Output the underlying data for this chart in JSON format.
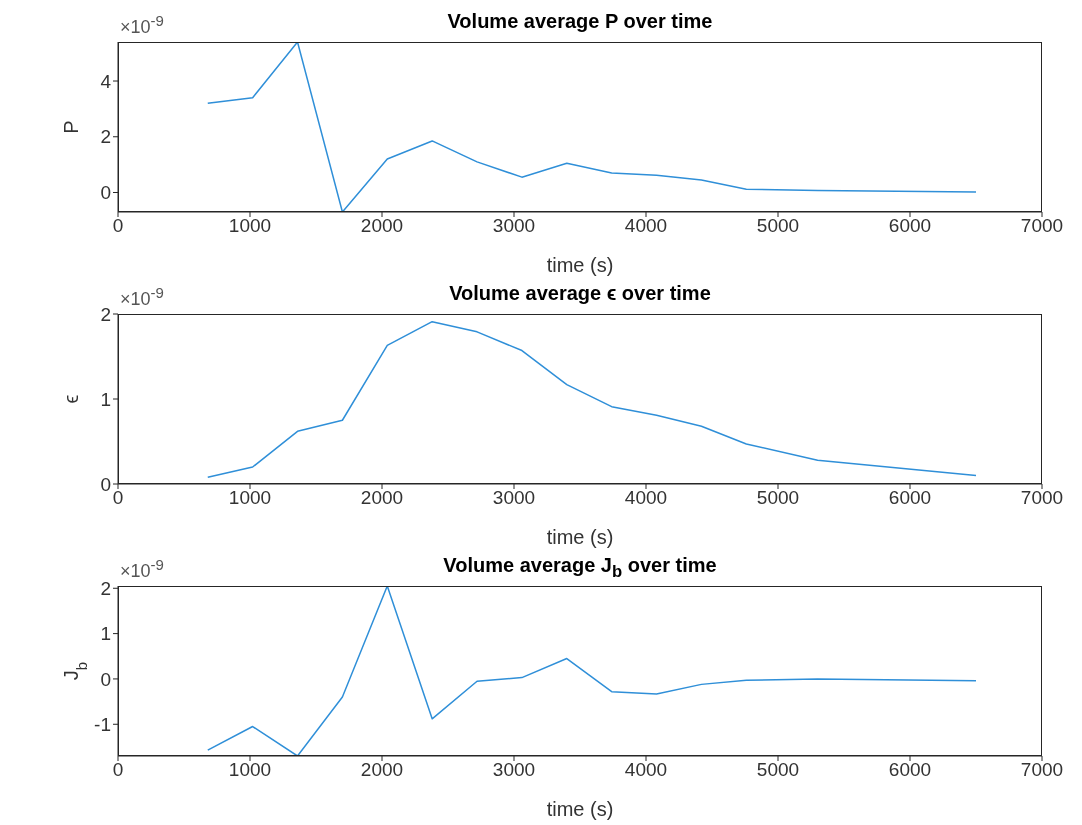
{
  "chart_data": [
    {
      "type": "line",
      "title": "Volume average P over time",
      "xlabel": "time (s)",
      "ylabel": "P",
      "annotations": [
        "×10$^{-9}$"
      ],
      "x": [
        680,
        1020,
        1360,
        1700,
        2040,
        2380,
        2720,
        3060,
        3400,
        3740,
        4080,
        4420,
        4760,
        5300,
        6500
      ],
      "series": [
        {
          "color": "#2f8fd8",
          "values": [
            3.2,
            3.4,
            5.4,
            -0.7,
            1.2,
            1.85,
            1.1,
            0.55,
            1.05,
            0.7,
            0.62,
            0.45,
            0.12,
            0.07,
            0.02
          ]
        }
      ],
      "xlim": [
        0,
        7000
      ],
      "xticks": [
        0,
        1000,
        2000,
        3000,
        4000,
        5000,
        6000,
        7000
      ],
      "ylim": [
        -0.7,
        5.4
      ],
      "yticks": [
        0,
        2,
        4
      ],
      "grid": false,
      "legend": false
    },
    {
      "type": "line",
      "title": "Volume average ϵ over time",
      "xlabel": "time (s)",
      "ylabel": "ϵ",
      "annotations": [
        "×10$^{-9}$"
      ],
      "x": [
        680,
        1020,
        1360,
        1700,
        2040,
        2380,
        2720,
        3060,
        3400,
        3740,
        4080,
        4420,
        4760,
        5300,
        6500
      ],
      "series": [
        {
          "color": "#2f8fd8",
          "values": [
            0.08,
            0.2,
            0.62,
            0.75,
            1.63,
            1.91,
            1.79,
            1.57,
            1.17,
            0.91,
            0.81,
            0.68,
            0.47,
            0.28,
            0.1
          ]
        }
      ],
      "xlim": [
        0,
        7000
      ],
      "xticks": [
        0,
        1000,
        2000,
        3000,
        4000,
        5000,
        6000,
        7000
      ],
      "ylim": [
        0,
        2
      ],
      "yticks": [
        0,
        1,
        2
      ],
      "grid": false,
      "legend": false
    },
    {
      "type": "line",
      "title": "Volume average J$_{b}$ over time",
      "xlabel": "time (s)",
      "ylabel": "J$_{b}$",
      "annotations": [
        "×10$^{-9}$"
      ],
      "x": [
        680,
        1020,
        1360,
        1700,
        2040,
        2380,
        2720,
        3060,
        3400,
        3740,
        4080,
        4420,
        4760,
        5300,
        6500
      ],
      "series": [
        {
          "color": "#2f8fd8",
          "values": [
            -1.57,
            -1.05,
            -1.7,
            -0.4,
            2.05,
            -0.88,
            -0.05,
            0.03,
            0.45,
            -0.28,
            -0.33,
            -0.12,
            -0.03,
            0,
            -0.04
          ]
        }
      ],
      "xlim": [
        0,
        7000
      ],
      "xticks": [
        0,
        1000,
        2000,
        3000,
        4000,
        5000,
        6000,
        7000
      ],
      "ylim": [
        -1.7,
        2.05
      ],
      "yticks": [
        -1,
        0,
        1,
        2
      ],
      "grid": false,
      "legend": false
    }
  ]
}
